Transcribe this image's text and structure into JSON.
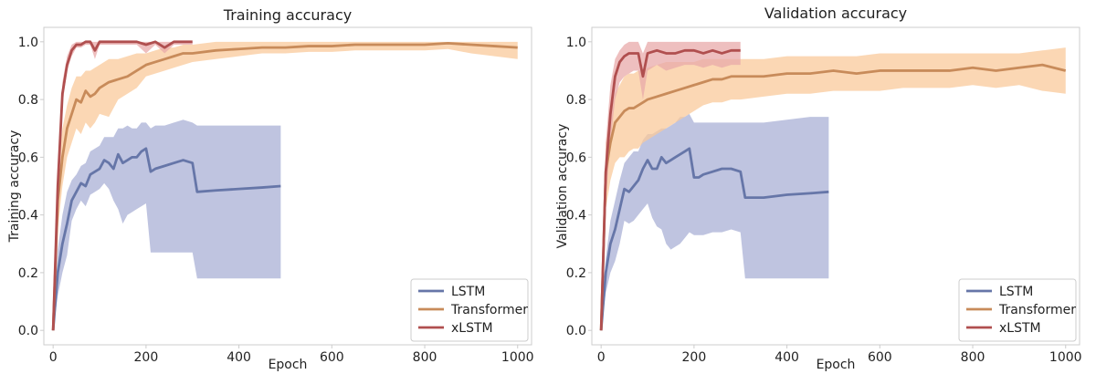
{
  "chart_data": [
    {
      "type": "line",
      "title": "Training accuracy",
      "xlabel": "Epoch",
      "ylabel": "Training accuracy",
      "xlim": [
        -20,
        1030
      ],
      "ylim": [
        -0.05,
        1.05
      ],
      "xticks": [
        "0",
        "200",
        "400",
        "600",
        "800",
        "1000"
      ],
      "yticks": [
        "0.0",
        "0.2",
        "0.4",
        "0.6",
        "0.8",
        "1.0"
      ],
      "grid": false,
      "legend_position": "bottom-right",
      "series": [
        {
          "name": "LSTM",
          "color": "#6676a8",
          "band_color": "#aab0d6",
          "x": [
            0,
            10,
            20,
            30,
            40,
            50,
            60,
            70,
            80,
            90,
            100,
            110,
            120,
            130,
            140,
            150,
            160,
            170,
            180,
            190,
            200,
            210,
            220,
            240,
            260,
            280,
            300,
            310,
            350,
            400,
            450,
            490
          ],
          "y": [
            0.0,
            0.2,
            0.3,
            0.37,
            0.45,
            0.48,
            0.51,
            0.5,
            0.54,
            0.55,
            0.56,
            0.59,
            0.58,
            0.56,
            0.61,
            0.58,
            0.59,
            0.6,
            0.6,
            0.62,
            0.63,
            0.55,
            0.56,
            0.57,
            0.58,
            0.59,
            0.58,
            0.48,
            0.485,
            0.49,
            0.495,
            0.5
          ],
          "lower": [
            0.0,
            0.12,
            0.2,
            0.26,
            0.38,
            0.42,
            0.45,
            0.43,
            0.47,
            0.48,
            0.49,
            0.51,
            0.49,
            0.45,
            0.42,
            0.37,
            0.4,
            0.41,
            0.42,
            0.43,
            0.44,
            0.27,
            0.27,
            0.27,
            0.27,
            0.27,
            0.27,
            0.18,
            0.18,
            0.18,
            0.18,
            0.18
          ],
          "upper": [
            0.0,
            0.28,
            0.4,
            0.48,
            0.52,
            0.54,
            0.57,
            0.58,
            0.62,
            0.63,
            0.64,
            0.67,
            0.67,
            0.67,
            0.7,
            0.7,
            0.71,
            0.7,
            0.7,
            0.72,
            0.72,
            0.7,
            0.71,
            0.71,
            0.72,
            0.73,
            0.72,
            0.71,
            0.71,
            0.71,
            0.71,
            0.71
          ]
        },
        {
          "name": "Transformer",
          "color": "#c88b5a",
          "band_color": "#f9c99b",
          "x": [
            0,
            10,
            20,
            30,
            40,
            50,
            60,
            70,
            80,
            90,
            100,
            120,
            140,
            160,
            180,
            200,
            220,
            240,
            260,
            280,
            300,
            350,
            400,
            450,
            500,
            550,
            600,
            650,
            700,
            750,
            800,
            850,
            900,
            950,
            1000
          ],
          "y": [
            0.0,
            0.45,
            0.6,
            0.7,
            0.75,
            0.8,
            0.79,
            0.83,
            0.81,
            0.82,
            0.84,
            0.86,
            0.87,
            0.88,
            0.9,
            0.92,
            0.93,
            0.94,
            0.95,
            0.96,
            0.96,
            0.97,
            0.975,
            0.98,
            0.98,
            0.985,
            0.985,
            0.99,
            0.99,
            0.99,
            0.99,
            0.995,
            0.99,
            0.985,
            0.98
          ],
          "lower": [
            0.0,
            0.35,
            0.5,
            0.6,
            0.65,
            0.7,
            0.68,
            0.72,
            0.7,
            0.72,
            0.75,
            0.74,
            0.8,
            0.82,
            0.84,
            0.88,
            0.89,
            0.9,
            0.91,
            0.92,
            0.93,
            0.94,
            0.95,
            0.96,
            0.96,
            0.965,
            0.965,
            0.97,
            0.97,
            0.97,
            0.97,
            0.975,
            0.96,
            0.95,
            0.94
          ],
          "upper": [
            0.0,
            0.55,
            0.7,
            0.78,
            0.84,
            0.88,
            0.88,
            0.9,
            0.9,
            0.91,
            0.92,
            0.94,
            0.94,
            0.95,
            0.96,
            0.96,
            0.97,
            0.98,
            0.98,
            0.99,
            0.99,
            1.0,
            1.0,
            1.0,
            1.0,
            1.0,
            1.0,
            1.0,
            1.0,
            1.0,
            1.0,
            1.0,
            1.0,
            1.0,
            1.0
          ]
        },
        {
          "name": "xLSTM",
          "color": "#b04f4f",
          "band_color": "#e8aaaa",
          "x": [
            0,
            10,
            20,
            30,
            40,
            50,
            60,
            70,
            80,
            90,
            100,
            120,
            140,
            160,
            180,
            200,
            220,
            240,
            260,
            280,
            300
          ],
          "y": [
            0.0,
            0.5,
            0.82,
            0.92,
            0.97,
            0.99,
            0.99,
            1.0,
            1.0,
            0.97,
            1.0,
            1.0,
            1.0,
            1.0,
            1.0,
            0.99,
            1.0,
            0.98,
            1.0,
            1.0,
            1.0
          ],
          "lower": [
            0.0,
            0.45,
            0.78,
            0.9,
            0.95,
            0.98,
            0.98,
            0.99,
            0.99,
            0.94,
            0.99,
            0.99,
            0.99,
            0.99,
            0.99,
            0.96,
            0.99,
            0.96,
            0.99,
            0.99,
            0.99
          ],
          "upper": [
            0.0,
            0.55,
            0.86,
            0.95,
            0.99,
            1.0,
            1.0,
            1.0,
            1.0,
            1.0,
            1.0,
            1.0,
            1.0,
            1.0,
            1.0,
            1.0,
            1.0,
            1.0,
            1.0,
            1.0,
            1.0
          ]
        }
      ]
    },
    {
      "type": "line",
      "title": "Validation accuracy",
      "xlabel": "Epoch",
      "ylabel": "Validation accuracy",
      "xlim": [
        -20,
        1030
      ],
      "ylim": [
        -0.05,
        1.05
      ],
      "xticks": [
        "0",
        "200",
        "400",
        "600",
        "800",
        "1000"
      ],
      "yticks": [
        "0.0",
        "0.2",
        "0.4",
        "0.6",
        "0.8",
        "1.0"
      ],
      "grid": false,
      "legend_position": "bottom-right",
      "series": [
        {
          "name": "LSTM",
          "color": "#6676a8",
          "band_color": "#aab0d6",
          "x": [
            0,
            10,
            20,
            30,
            40,
            50,
            60,
            70,
            80,
            90,
            100,
            110,
            120,
            130,
            140,
            150,
            160,
            170,
            180,
            190,
            200,
            210,
            220,
            240,
            260,
            280,
            300,
            310,
            350,
            400,
            450,
            490
          ],
          "y": [
            0.0,
            0.2,
            0.3,
            0.35,
            0.42,
            0.49,
            0.48,
            0.5,
            0.52,
            0.56,
            0.59,
            0.56,
            0.56,
            0.6,
            0.58,
            0.59,
            0.6,
            0.61,
            0.62,
            0.63,
            0.53,
            0.53,
            0.54,
            0.55,
            0.56,
            0.56,
            0.55,
            0.46,
            0.46,
            0.47,
            0.475,
            0.48
          ],
          "lower": [
            0.0,
            0.13,
            0.2,
            0.24,
            0.3,
            0.38,
            0.37,
            0.38,
            0.4,
            0.42,
            0.44,
            0.39,
            0.36,
            0.35,
            0.3,
            0.28,
            0.29,
            0.3,
            0.32,
            0.34,
            0.33,
            0.33,
            0.33,
            0.34,
            0.34,
            0.35,
            0.34,
            0.18,
            0.18,
            0.18,
            0.18,
            0.18
          ],
          "upper": [
            0.0,
            0.25,
            0.38,
            0.45,
            0.52,
            0.58,
            0.6,
            0.62,
            0.62,
            0.66,
            0.68,
            0.68,
            0.69,
            0.7,
            0.7,
            0.71,
            0.72,
            0.74,
            0.74,
            0.75,
            0.72,
            0.72,
            0.72,
            0.72,
            0.72,
            0.72,
            0.72,
            0.72,
            0.72,
            0.73,
            0.74,
            0.74
          ]
        },
        {
          "name": "Transformer",
          "color": "#c88b5a",
          "band_color": "#f9c99b",
          "x": [
            0,
            10,
            20,
            30,
            40,
            50,
            60,
            70,
            80,
            90,
            100,
            120,
            140,
            160,
            180,
            200,
            220,
            240,
            260,
            280,
            300,
            350,
            400,
            450,
            500,
            550,
            600,
            650,
            700,
            750,
            800,
            850,
            900,
            950,
            1000
          ],
          "y": [
            0.0,
            0.55,
            0.65,
            0.72,
            0.74,
            0.76,
            0.77,
            0.77,
            0.78,
            0.79,
            0.8,
            0.81,
            0.82,
            0.83,
            0.84,
            0.85,
            0.86,
            0.87,
            0.87,
            0.88,
            0.88,
            0.88,
            0.89,
            0.89,
            0.9,
            0.89,
            0.9,
            0.9,
            0.9,
            0.9,
            0.91,
            0.9,
            0.91,
            0.92,
            0.9
          ],
          "lower": [
            0.0,
            0.42,
            0.52,
            0.58,
            0.6,
            0.6,
            0.62,
            0.63,
            0.63,
            0.65,
            0.66,
            0.68,
            0.7,
            0.72,
            0.74,
            0.76,
            0.78,
            0.79,
            0.79,
            0.8,
            0.8,
            0.81,
            0.82,
            0.82,
            0.83,
            0.83,
            0.83,
            0.84,
            0.84,
            0.84,
            0.85,
            0.84,
            0.85,
            0.83,
            0.82
          ],
          "upper": [
            0.0,
            0.65,
            0.75,
            0.82,
            0.85,
            0.88,
            0.89,
            0.89,
            0.9,
            0.9,
            0.91,
            0.92,
            0.93,
            0.93,
            0.93,
            0.93,
            0.94,
            0.94,
            0.94,
            0.94,
            0.94,
            0.94,
            0.95,
            0.95,
            0.95,
            0.95,
            0.96,
            0.96,
            0.96,
            0.96,
            0.96,
            0.96,
            0.96,
            0.97,
            0.98
          ]
        },
        {
          "name": "xLSTM",
          "color": "#b04f4f",
          "band_color": "#e8aaaa",
          "x": [
            0,
            10,
            20,
            30,
            40,
            50,
            60,
            70,
            80,
            90,
            100,
            120,
            140,
            160,
            180,
            200,
            220,
            240,
            260,
            280,
            300
          ],
          "y": [
            0.0,
            0.55,
            0.75,
            0.88,
            0.93,
            0.95,
            0.96,
            0.96,
            0.96,
            0.88,
            0.96,
            0.97,
            0.96,
            0.96,
            0.97,
            0.97,
            0.96,
            0.97,
            0.96,
            0.97,
            0.97
          ],
          "lower": [
            0.0,
            0.45,
            0.65,
            0.8,
            0.86,
            0.88,
            0.89,
            0.9,
            0.9,
            0.8,
            0.9,
            0.92,
            0.9,
            0.91,
            0.92,
            0.92,
            0.91,
            0.92,
            0.91,
            0.92,
            0.92
          ],
          "upper": [
            0.0,
            0.65,
            0.85,
            0.94,
            0.97,
            0.99,
            1.0,
            1.0,
            1.0,
            0.96,
            1.0,
            1.0,
            1.0,
            1.0,
            1.0,
            1.0,
            1.0,
            1.0,
            1.0,
            1.0,
            1.0
          ]
        }
      ]
    }
  ]
}
